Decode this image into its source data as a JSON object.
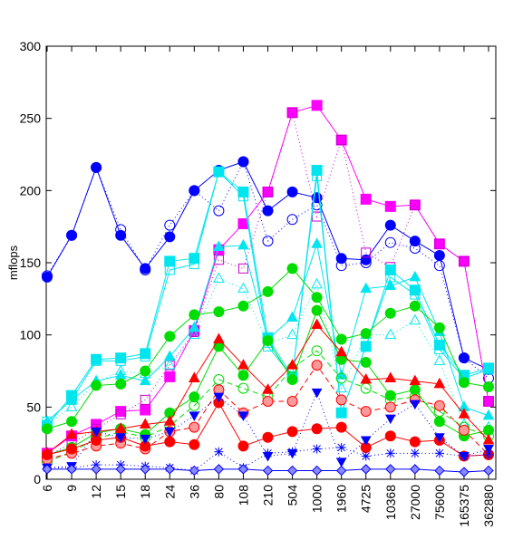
{
  "chart_data": {
    "type": "line",
    "ylabel": "mflops",
    "ylim": [
      0,
      300
    ],
    "yticks": [
      0,
      50,
      100,
      150,
      200,
      250,
      300
    ],
    "categories": [
      "6",
      "9",
      "12",
      "15",
      "18",
      "24",
      "36",
      "80",
      "108",
      "210",
      "504",
      "1000",
      "1960",
      "4725",
      "10368",
      "27000",
      "75600",
      "165375",
      "362880"
    ],
    "grid": false,
    "legend": "none",
    "series": [
      {
        "color": "#0000ff",
        "marker": "circle-filled",
        "dash": "solid",
        "values": [
          140,
          169,
          216,
          169,
          146,
          168,
          200,
          214,
          220,
          186,
          199,
          195,
          153,
          152,
          176,
          165,
          155,
          84,
          76
        ]
      },
      {
        "color": "#0000ff",
        "marker": "circle-open",
        "dash": "dot",
        "values": [
          141,
          169,
          216,
          173,
          145,
          176,
          200,
          186,
          220,
          165,
          180,
          190,
          148,
          150,
          164,
          160,
          148,
          84,
          70
        ]
      },
      {
        "color": "#ff00ff",
        "marker": "square-filled",
        "dash": "solid",
        "values": [
          18,
          30,
          38,
          47,
          48,
          71,
          103,
          159,
          177,
          199,
          254,
          259,
          235,
          194,
          189,
          190,
          163,
          151,
          54
        ]
      },
      {
        "color": "#cc00cc",
        "marker": "square-open",
        "dash": "dot",
        "values": [
          16,
          25,
          35,
          45,
          55,
          79,
          102,
          152,
          146,
          199,
          254,
          182,
          235,
          157,
          147,
          190,
          163,
          151,
          54
        ]
      },
      {
        "color": "#00e5ee",
        "marker": "square-filled",
        "dash": "solid",
        "values": [
          37,
          58,
          83,
          84,
          87,
          151,
          153,
          213,
          199,
          98,
          71,
          214,
          46,
          92,
          145,
          131,
          93,
          72,
          77
        ]
      },
      {
        "color": "#00e5ee",
        "marker": "square-open",
        "dash": "solid",
        "values": [
          40,
          55,
          82,
          82,
          85,
          145,
          149,
          213,
          196,
          92,
          71,
          210,
          46,
          92,
          140,
          128,
          90,
          70,
          76
        ]
      },
      {
        "color": "#00e5ee",
        "marker": "triangle-filled",
        "dash": "solid",
        "values": [
          40,
          55,
          68,
          72,
          68,
          85,
          105,
          161,
          162,
          97,
          112,
          163,
          72,
          132,
          134,
          140,
          102,
          50,
          44
        ]
      },
      {
        "color": "#00e5ee",
        "marker": "triangle-open",
        "dash": "dot",
        "values": [
          38,
          50,
          67,
          75,
          73,
          79,
          100,
          139,
          132,
          94,
          100,
          135,
          63,
          100,
          100,
          110,
          82,
          38,
          36
        ]
      },
      {
        "color": "#00dd00",
        "marker": "circle-filled",
        "dash": "solid",
        "values": [
          35,
          40,
          65,
          66,
          75,
          99,
          114,
          116,
          120,
          130,
          146,
          126,
          97,
          101,
          115,
          120,
          105,
          67,
          64
        ]
      },
      {
        "color": "#00dd00",
        "marker": "circle-filled",
        "dash": "solid",
        "values": [
          17,
          22,
          32,
          35,
          31,
          46,
          57,
          92,
          72,
          96,
          69,
          117,
          83,
          81,
          58,
          62,
          40,
          30,
          34
        ]
      },
      {
        "color": "#00dd00",
        "marker": "circle-open",
        "dash": "dash",
        "values": [
          12,
          19,
          28,
          33,
          29,
          37,
          51,
          69,
          63,
          57,
          77,
          89,
          70,
          63,
          55,
          57,
          47,
          36,
          30
        ]
      },
      {
        "color": "#ff0000",
        "marker": "triangle-filled",
        "dash": "solid",
        "values": [
          18,
          31,
          33,
          35,
          38,
          40,
          70,
          97,
          79,
          62,
          79,
          107,
          88,
          69,
          70,
          68,
          66,
          45,
          27
        ]
      },
      {
        "color": "#ff0000",
        "marker": "circle-open-filled-light",
        "dash": "dash",
        "values": [
          14,
          18,
          23,
          25,
          21,
          33,
          36,
          62,
          46,
          54,
          54,
          79,
          55,
          47,
          50,
          55,
          51,
          34,
          17
        ]
      },
      {
        "color": "#ff0000",
        "marker": "circle-filled",
        "dash": "solid",
        "values": [
          17,
          21,
          27,
          29,
          23,
          26,
          24,
          53,
          23,
          29,
          33,
          35,
          36,
          22,
          30,
          26,
          27,
          16,
          17
        ]
      },
      {
        "color": "#0000ff",
        "marker": "triangle-down-filled",
        "dash": "dot",
        "values": [
          8,
          9,
          33,
          29,
          28,
          33,
          44,
          57,
          44,
          16,
          18,
          60,
          12,
          27,
          42,
          52,
          29,
          16,
          21
        ]
      },
      {
        "color": "#0000ff",
        "marker": "asterisk",
        "dash": "dot",
        "values": [
          8,
          8,
          10,
          10,
          9,
          8,
          6,
          19,
          8,
          18,
          19,
          21,
          22,
          16,
          18,
          18,
          18,
          16,
          17
        ]
      },
      {
        "color": "#0000ff",
        "marker": "diamond-filled",
        "dash": "solid",
        "values": [
          7,
          7,
          7,
          7,
          7,
          7,
          6,
          7,
          7,
          6,
          6,
          6,
          6,
          7,
          7,
          7,
          6,
          5,
          6
        ]
      }
    ]
  }
}
